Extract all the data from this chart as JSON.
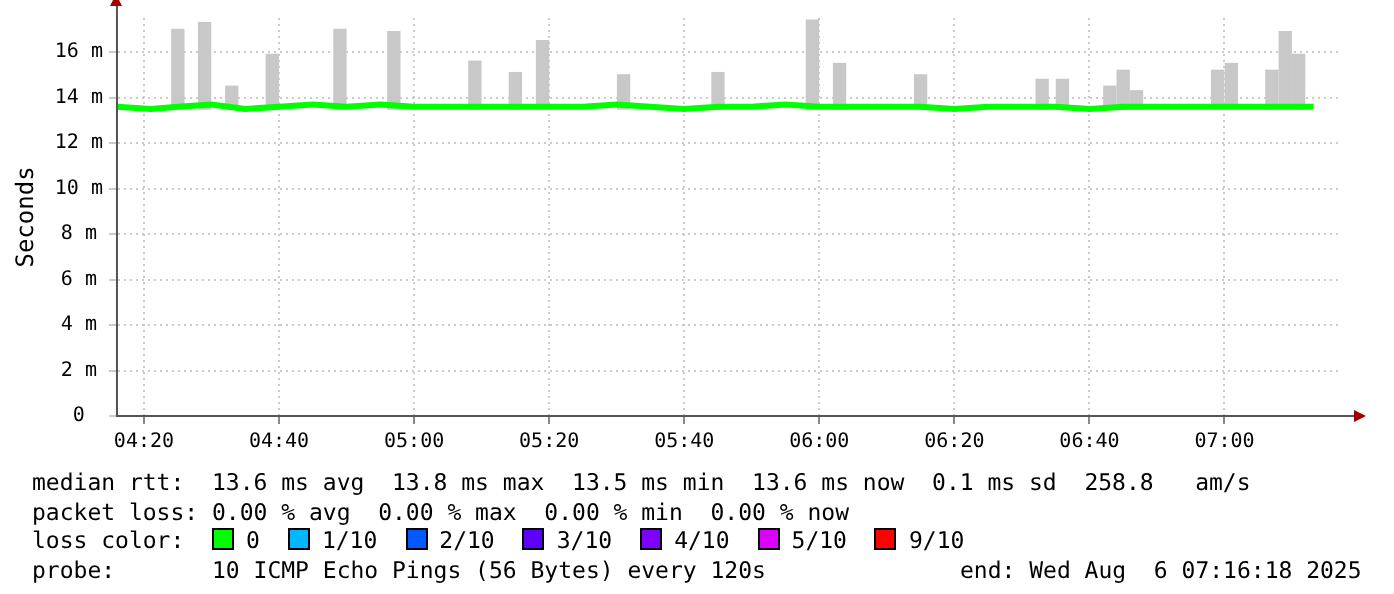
{
  "chart_data": {
    "type": "bar",
    "ylabel": "Seconds",
    "xlim": [
      4.2667,
      7.29
    ],
    "ylim": [
      0,
      17.5
    ],
    "xticks": [
      {
        "value": 4.3333,
        "label": "04:20"
      },
      {
        "value": 4.6667,
        "label": "04:40"
      },
      {
        "value": 5,
        "label": "05:00"
      },
      {
        "value": 5.3333,
        "label": "05:20"
      },
      {
        "value": 5.6667,
        "label": "05:40"
      },
      {
        "value": 6,
        "label": "06:00"
      },
      {
        "value": 6.3333,
        "label": "06:20"
      },
      {
        "value": 6.6667,
        "label": "06:40"
      },
      {
        "value": 7,
        "label": "07:00"
      }
    ],
    "yticks": [
      0,
      {
        "value": 2,
        "label": "2 m"
      },
      {
        "value": 4,
        "label": "4 m"
      },
      {
        "value": 6,
        "label": "6 m"
      },
      {
        "value": 8,
        "label": "8 m"
      },
      {
        "value": 10,
        "label": "10 m"
      },
      {
        "value": 12,
        "label": "12 m"
      },
      {
        "value": 14,
        "label": "14 m"
      },
      {
        "value": 16,
        "label": "16 m"
      }
    ],
    "grid": true,
    "legend": false,
    "series": [
      {
        "color": "#c8c8c8",
        "x": [
          4.417,
          4.483,
          4.55,
          4.65,
          4.817,
          4.95,
          5.15,
          5.25,
          5.317,
          5.517,
          5.75,
          5.983,
          6.05,
          6.25,
          6.55,
          6.6,
          6.717,
          6.75,
          6.783,
          6.983,
          7.017,
          7.117,
          7.15,
          7.183
        ],
        "base": [
          13.5,
          13.5,
          13.5,
          13.5,
          13.5,
          13.5,
          13.5,
          13.5,
          13.5,
          13.5,
          13.5,
          13.5,
          13.5,
          13.5,
          13.5,
          13.5,
          13.5,
          13.5,
          13.5,
          13.5,
          13.5,
          13.5,
          13.5,
          13.5
        ],
        "values": [
          3.5,
          3.8,
          1,
          2.4,
          3.5,
          3.4,
          2.1,
          1.6,
          3,
          1.5,
          1.6,
          3.9,
          2,
          1.5,
          1.3,
          1.3,
          1,
          1.7,
          0.8,
          1.7,
          2,
          1.7,
          3.4,
          2.4
        ]
      },
      {
        "type": "line",
        "color": "#00ff00",
        "x": [
          4.2667,
          4.35,
          4.417,
          4.5,
          4.583,
          4.667,
          4.75,
          4.833,
          4.917,
          5,
          5.083,
          5.167,
          5.25,
          5.333,
          5.417,
          5.5,
          5.583,
          5.667,
          5.75,
          5.833,
          5.917,
          6,
          6.083,
          6.167,
          6.25,
          6.333,
          6.417,
          6.5,
          6.583,
          6.667,
          6.75,
          6.833,
          6.917,
          7,
          7.083,
          7.167,
          7.22
        ],
        "values": [
          13.6,
          13.5,
          13.6,
          13.7,
          13.5,
          13.6,
          13.7,
          13.6,
          13.7,
          13.6,
          13.6,
          13.6,
          13.6,
          13.6,
          13.6,
          13.7,
          13.6,
          13.5,
          13.6,
          13.6,
          13.7,
          13.6,
          13.6,
          13.6,
          13.6,
          13.5,
          13.6,
          13.6,
          13.6,
          13.5,
          13.6,
          13.6,
          13.6,
          13.6,
          13.6,
          13.6,
          13.6
        ]
      }
    ],
    "annotations": [
      "median rtt:  13.6 ms avg  13.8 ms max  13.5 ms min  13.6 ms now  0.1 ms sd  258.8   am/s",
      "packet loss: 0.00 % avg  0.00 % max  0.00 % min  0.00 % now",
      "loss color:",
      "0",
      "1/10",
      "2/10",
      "3/10",
      "4/10",
      "5/10",
      "9/10",
      "probe:       10 ICMP Echo Pings (56 Bytes) every 120s",
      "end: Wed Aug  6 07:16:18 2025"
    ]
  }
}
